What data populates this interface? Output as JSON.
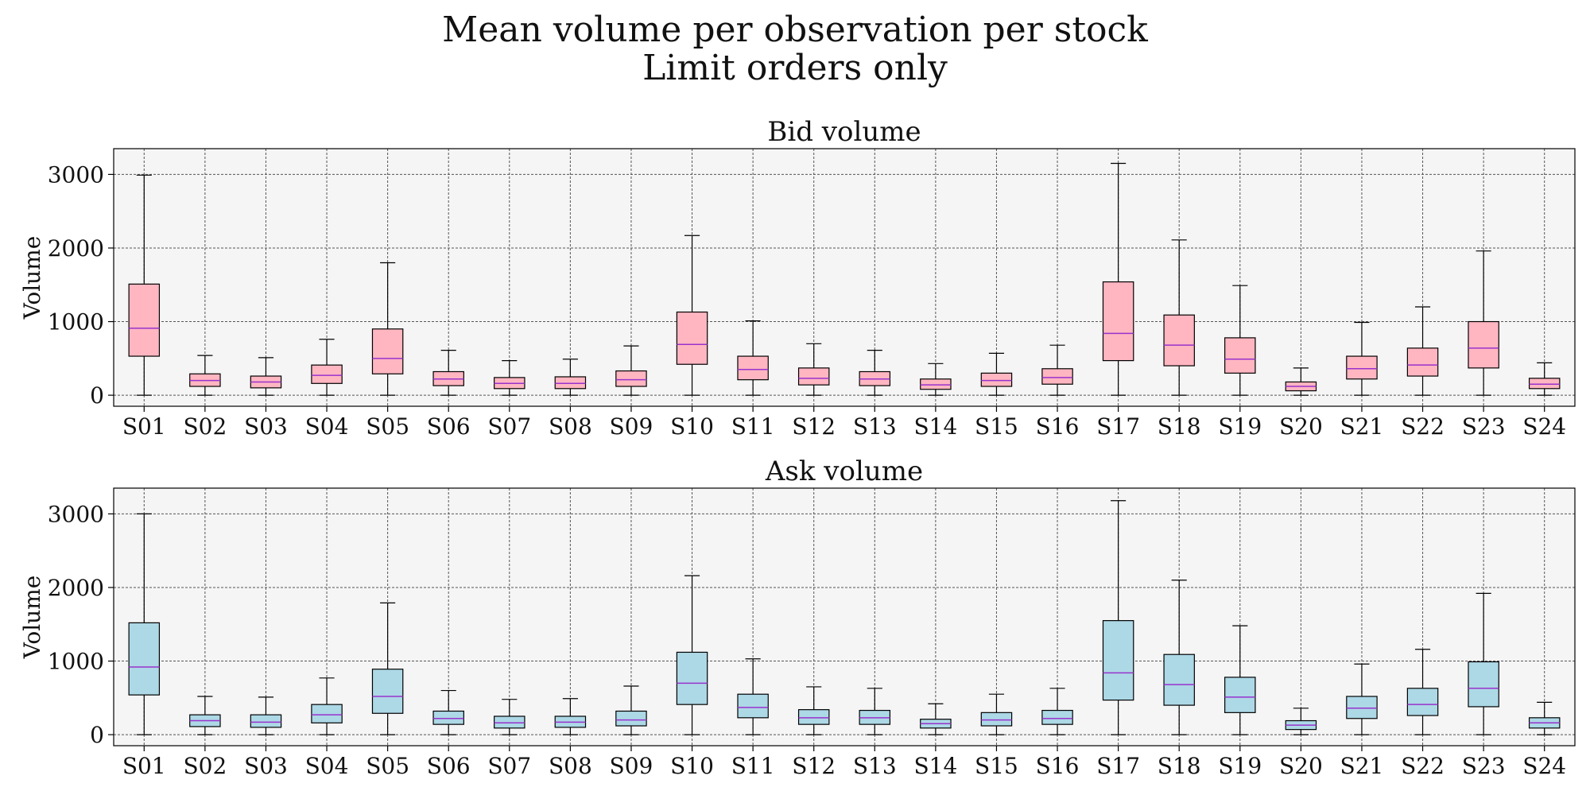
{
  "figure": {
    "title_line1": "Mean volume per observation per stock",
    "title_line2": "Limit orders only"
  },
  "colors": {
    "bid_box": "#ffb6c1",
    "ask_box": "#add8e6",
    "median": "#9932cc",
    "panel_bg": "#f5f5f5",
    "grid": "#555555"
  },
  "chart_data": [
    {
      "type": "box",
      "title": "Bid volume",
      "ylabel": "Volume",
      "xlabel": "",
      "ylim": [
        -150,
        3350
      ],
      "yticks": [
        0,
        1000,
        2000,
        3000
      ],
      "grid": true,
      "categories": [
        "S01",
        "S02",
        "S03",
        "S04",
        "S05",
        "S06",
        "S07",
        "S08",
        "S09",
        "S10",
        "S11",
        "S12",
        "S13",
        "S14",
        "S15",
        "S16",
        "S17",
        "S18",
        "S19",
        "S20",
        "S21",
        "S22",
        "S23",
        "S24"
      ],
      "boxes": [
        {
          "whislo": 0,
          "q1": 530,
          "med": 910,
          "q3": 1510,
          "whishi": 2990
        },
        {
          "whislo": 0,
          "q1": 120,
          "med": 200,
          "q3": 290,
          "whishi": 540
        },
        {
          "whislo": 0,
          "q1": 100,
          "med": 180,
          "q3": 260,
          "whishi": 510
        },
        {
          "whislo": 0,
          "q1": 160,
          "med": 270,
          "q3": 410,
          "whishi": 760
        },
        {
          "whislo": 0,
          "q1": 290,
          "med": 500,
          "q3": 900,
          "whishi": 1800
        },
        {
          "whislo": 0,
          "q1": 130,
          "med": 220,
          "q3": 320,
          "whishi": 610
        },
        {
          "whislo": 0,
          "q1": 90,
          "med": 160,
          "q3": 240,
          "whishi": 470
        },
        {
          "whislo": 0,
          "q1": 90,
          "med": 160,
          "q3": 250,
          "whishi": 490
        },
        {
          "whislo": 0,
          "q1": 120,
          "med": 210,
          "q3": 330,
          "whishi": 670
        },
        {
          "whislo": 0,
          "q1": 420,
          "med": 690,
          "q3": 1130,
          "whishi": 2170
        },
        {
          "whislo": 0,
          "q1": 210,
          "med": 350,
          "q3": 530,
          "whishi": 1010
        },
        {
          "whislo": 0,
          "q1": 140,
          "med": 230,
          "q3": 370,
          "whishi": 700
        },
        {
          "whislo": 0,
          "q1": 130,
          "med": 220,
          "q3": 320,
          "whishi": 610
        },
        {
          "whislo": 0,
          "q1": 80,
          "med": 140,
          "q3": 220,
          "whishi": 430
        },
        {
          "whislo": 0,
          "q1": 120,
          "med": 200,
          "q3": 300,
          "whishi": 570
        },
        {
          "whislo": 0,
          "q1": 150,
          "med": 240,
          "q3": 360,
          "whishi": 680
        },
        {
          "whislo": 0,
          "q1": 470,
          "med": 840,
          "q3": 1540,
          "whishi": 3150
        },
        {
          "whislo": 0,
          "q1": 400,
          "med": 680,
          "q3": 1090,
          "whishi": 2110
        },
        {
          "whislo": 0,
          "q1": 300,
          "med": 490,
          "q3": 780,
          "whishi": 1490
        },
        {
          "whislo": 0,
          "q1": 60,
          "med": 120,
          "q3": 180,
          "whishi": 370
        },
        {
          "whislo": 0,
          "q1": 220,
          "med": 360,
          "q3": 530,
          "whishi": 990
        },
        {
          "whislo": 0,
          "q1": 260,
          "med": 410,
          "q3": 640,
          "whishi": 1200
        },
        {
          "whislo": 0,
          "q1": 370,
          "med": 640,
          "q3": 1000,
          "whishi": 1960
        },
        {
          "whislo": 0,
          "q1": 90,
          "med": 150,
          "q3": 230,
          "whishi": 440
        }
      ]
    },
    {
      "type": "box",
      "title": "Ask volume",
      "ylabel": "Volume",
      "xlabel": "",
      "ylim": [
        -150,
        3350
      ],
      "yticks": [
        0,
        1000,
        2000,
        3000
      ],
      "grid": true,
      "categories": [
        "S01",
        "S02",
        "S03",
        "S04",
        "S05",
        "S06",
        "S07",
        "S08",
        "S09",
        "S10",
        "S11",
        "S12",
        "S13",
        "S14",
        "S15",
        "S16",
        "S17",
        "S18",
        "S19",
        "S20",
        "S21",
        "S22",
        "S23",
        "S24"
      ],
      "boxes": [
        {
          "whislo": 0,
          "q1": 540,
          "med": 920,
          "q3": 1520,
          "whishi": 3000
        },
        {
          "whislo": 0,
          "q1": 110,
          "med": 190,
          "q3": 270,
          "whishi": 520
        },
        {
          "whislo": 0,
          "q1": 100,
          "med": 170,
          "q3": 270,
          "whishi": 510
        },
        {
          "whislo": 0,
          "q1": 160,
          "med": 270,
          "q3": 410,
          "whishi": 770
        },
        {
          "whislo": 0,
          "q1": 290,
          "med": 520,
          "q3": 890,
          "whishi": 1790
        },
        {
          "whislo": 0,
          "q1": 140,
          "med": 220,
          "q3": 320,
          "whishi": 600
        },
        {
          "whislo": 0,
          "q1": 90,
          "med": 160,
          "q3": 250,
          "whishi": 480
        },
        {
          "whislo": 0,
          "q1": 100,
          "med": 170,
          "q3": 250,
          "whishi": 490
        },
        {
          "whislo": 0,
          "q1": 120,
          "med": 200,
          "q3": 320,
          "whishi": 660
        },
        {
          "whislo": 0,
          "q1": 410,
          "med": 700,
          "q3": 1120,
          "whishi": 2160
        },
        {
          "whislo": 0,
          "q1": 230,
          "med": 370,
          "q3": 550,
          "whishi": 1030
        },
        {
          "whislo": 0,
          "q1": 140,
          "med": 230,
          "q3": 340,
          "whishi": 650
        },
        {
          "whislo": 0,
          "q1": 140,
          "med": 230,
          "q3": 330,
          "whishi": 630
        },
        {
          "whislo": 0,
          "q1": 90,
          "med": 150,
          "q3": 210,
          "whishi": 420
        },
        {
          "whislo": 0,
          "q1": 120,
          "med": 200,
          "q3": 300,
          "whishi": 550
        },
        {
          "whislo": 0,
          "q1": 140,
          "med": 220,
          "q3": 330,
          "whishi": 630
        },
        {
          "whislo": 0,
          "q1": 470,
          "med": 840,
          "q3": 1550,
          "whishi": 3180
        },
        {
          "whislo": 0,
          "q1": 400,
          "med": 680,
          "q3": 1090,
          "whishi": 2100
        },
        {
          "whislo": 0,
          "q1": 300,
          "med": 510,
          "q3": 780,
          "whishi": 1480
        },
        {
          "whislo": 0,
          "q1": 70,
          "med": 130,
          "q3": 190,
          "whishi": 360
        },
        {
          "whislo": 0,
          "q1": 220,
          "med": 360,
          "q3": 520,
          "whishi": 960
        },
        {
          "whislo": 0,
          "q1": 260,
          "med": 410,
          "q3": 630,
          "whishi": 1160
        },
        {
          "whislo": 0,
          "q1": 380,
          "med": 630,
          "q3": 990,
          "whishi": 1920
        },
        {
          "whislo": 0,
          "q1": 90,
          "med": 160,
          "q3": 230,
          "whishi": 440
        }
      ]
    }
  ]
}
